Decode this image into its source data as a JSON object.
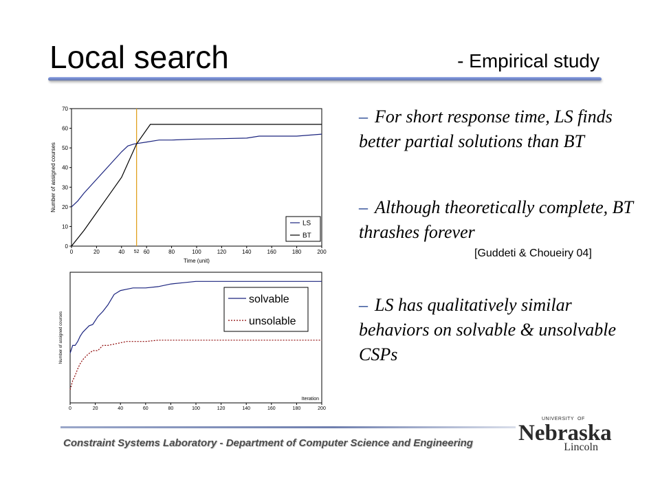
{
  "slide": {
    "title": "Local search",
    "subtitle": "- Empirical study",
    "bullets": [
      {
        "dash": "–",
        "text": "For short response time, LS finds better partial solutions than BT"
      },
      {
        "dash": "–",
        "text": "Although theoretically complete, BT thrashes forever"
      },
      {
        "dash": "–",
        "text": "LS has qualitatively similar behaviors on solvable & unsolvable CSPs"
      }
    ],
    "citation": "[Guddeti & Choueiry 04]",
    "footer": "Constraint Systems Laboratory - Department of Computer Science and Engineering",
    "logo": {
      "top_small": "UNIVERSITY",
      "of": "OF",
      "main": "Nebraska",
      "sub": "Lincoln"
    }
  },
  "chart_data": [
    {
      "type": "line",
      "xlabel": "Time (unit)",
      "ylabel": "Number of assigned courses",
      "xlim": [
        0,
        200
      ],
      "ylim": [
        0,
        70
      ],
      "xticks": [
        "0",
        "20",
        "40",
        "60",
        "80",
        "100",
        "120",
        "140",
        "160",
        "180",
        "200"
      ],
      "yticks": [
        "0",
        "10",
        "20",
        "30",
        "40",
        "50",
        "60",
        "70"
      ],
      "annotation": {
        "label": "52",
        "x": 52,
        "color": "#e0a020"
      },
      "legend_position": "bottom-right",
      "series": [
        {
          "name": "LS",
          "color": "#1a237e",
          "x": [
            0,
            5,
            10,
            20,
            30,
            40,
            45,
            50,
            60,
            70,
            80,
            100,
            120,
            140,
            150,
            160,
            180,
            200
          ],
          "y": [
            20,
            23,
            27,
            34,
            41,
            48,
            51,
            52,
            53,
            54,
            54,
            54.5,
            54.7,
            55,
            56,
            56,
            56,
            57
          ]
        },
        {
          "name": "BT",
          "color": "#000000",
          "x": [
            0,
            10,
            20,
            30,
            40,
            52,
            63,
            80,
            100,
            150,
            200
          ],
          "y": [
            0,
            8,
            17,
            26,
            35,
            52,
            62,
            62,
            62,
            62,
            62
          ]
        }
      ]
    },
    {
      "type": "line",
      "xlabel": "Iteration",
      "ylabel": "Number of assigned courses",
      "xlim": [
        0,
        200
      ],
      "ylim": [
        0,
        100
      ],
      "xticks": [
        "0",
        "20",
        "40",
        "60",
        "80",
        "100",
        "120",
        "140",
        "160",
        "180",
        "200"
      ],
      "legend_position": "top-right",
      "series": [
        {
          "name": "solvable",
          "color": "#1a237e",
          "style": "solid",
          "x": [
            0,
            2,
            4,
            6,
            8,
            10,
            12,
            15,
            18,
            22,
            26,
            30,
            35,
            40,
            45,
            50,
            60,
            70,
            80,
            90,
            100,
            110,
            200
          ],
          "y": [
            38,
            44,
            44,
            47,
            51,
            54,
            56,
            59,
            60,
            66,
            70,
            75,
            83,
            86,
            87,
            88,
            88,
            89,
            91,
            92,
            93,
            93,
            93
          ]
        },
        {
          "name": "unsolable",
          "color": "#8b0000",
          "style": "dashed",
          "x": [
            0,
            2,
            4,
            6,
            8,
            10,
            14,
            18,
            22,
            26,
            30,
            40,
            45,
            60,
            70,
            200
          ],
          "y": [
            10,
            17,
            21,
            26,
            30,
            33,
            37,
            40,
            40,
            44,
            44,
            46,
            47,
            47,
            48,
            48
          ]
        }
      ]
    }
  ]
}
